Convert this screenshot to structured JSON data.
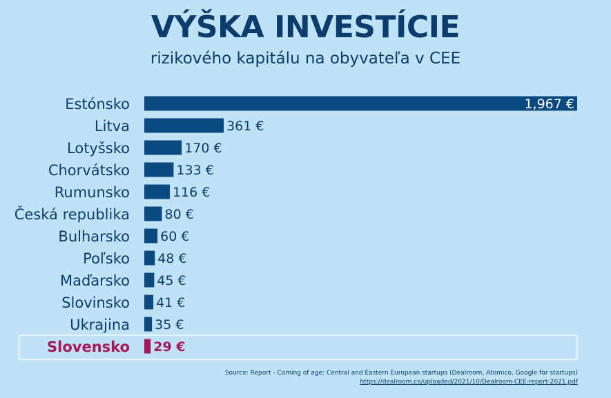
{
  "title": "VÝŠKA INVESTÍCIE",
  "subtitle": "rizikového kapitálu na obyvateľa v CEE",
  "colors": {
    "background": "#bfe2f5",
    "bar": "#0b4a80",
    "highlight": "#a8175a"
  },
  "chart_data": {
    "type": "bar",
    "orientation": "horizontal",
    "categories": [
      "Estónsko",
      "Litva",
      "Lotyšsko",
      "Chorvátsko",
      "Rumunsko",
      "Česká republika",
      "Bulharsko",
      "Poľsko",
      "Maďarsko",
      "Slovinsko",
      "Ukrajina",
      "Slovensko"
    ],
    "values": [
      1967,
      361,
      170,
      133,
      116,
      80,
      60,
      48,
      45,
      41,
      35,
      29
    ],
    "value_labels": [
      "1,967 €",
      "361 €",
      "170 €",
      "133 €",
      "116 €",
      "80 €",
      "60 €",
      "48 €",
      "45 €",
      "41 €",
      "35 €",
      "29 €"
    ],
    "highlighted": "Slovensko",
    "xlim": [
      0,
      1967
    ],
    "grid": false
  },
  "source": {
    "text": "Source: Report - Coming of age: Central and Eastern European startups (Dealroom, Atomico, Google for startups)",
    "url": "https://dealroom.co/uploaded/2021/10/Dealroom-CEE-report-2021.pdf"
  }
}
